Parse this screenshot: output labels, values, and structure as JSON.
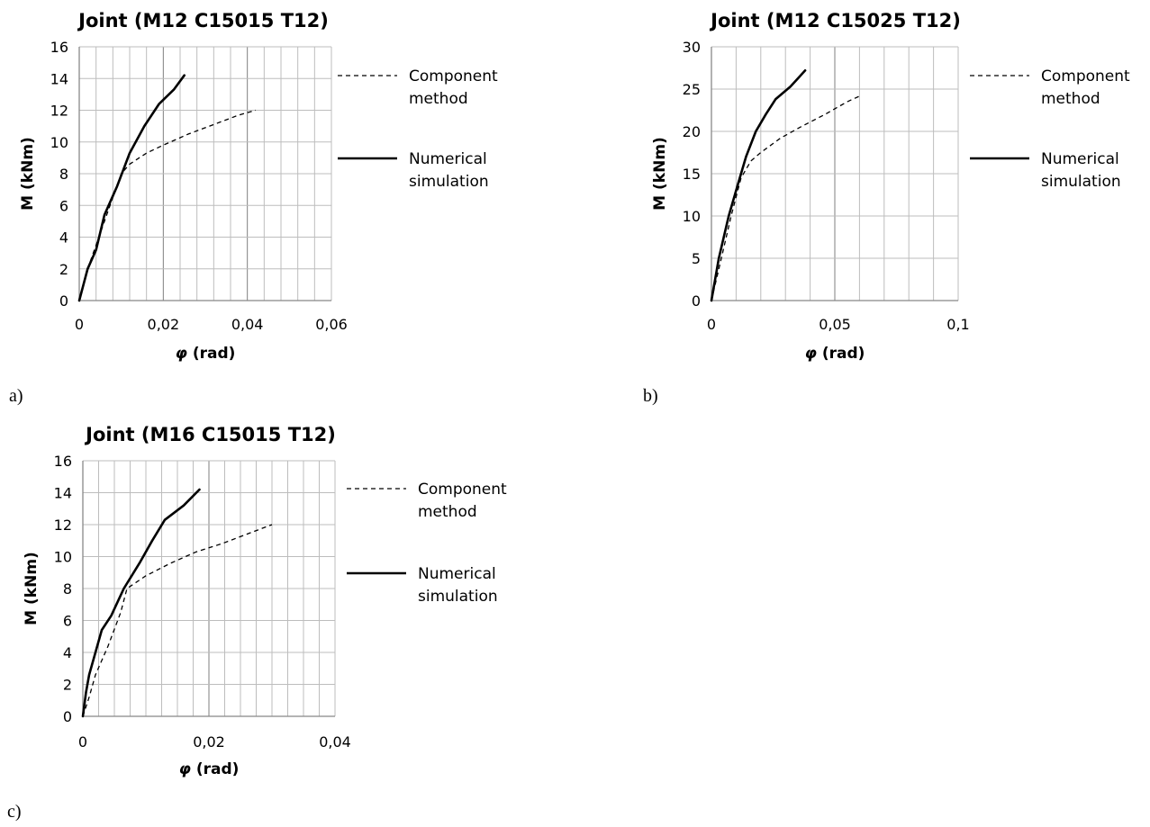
{
  "chart_data": [
    {
      "type": "line",
      "panel_label": "a)",
      "title": "Joint (M12 C15015 T12)",
      "xlabel_symbol": "φ",
      "xlabel_unit": " (rad)",
      "ylabel": "M (kNm)",
      "xlim": [
        0,
        0.06
      ],
      "ylim": [
        0,
        16
      ],
      "xticks": [
        0,
        0.02,
        0.04,
        0.06
      ],
      "xtick_labels": [
        "0",
        "0,02",
        "0,04",
        "0,06"
      ],
      "yticks": [
        0,
        2,
        4,
        6,
        8,
        10,
        12,
        14,
        16
      ],
      "ytick_labels": [
        "0",
        "2",
        "4",
        "6",
        "8",
        "10",
        "12",
        "14",
        "16"
      ],
      "x_minor_step": 0.004,
      "legend_position": "right",
      "series": [
        {
          "name": "Component method",
          "style": "dashed",
          "x": [
            0,
            0.002,
            0.004,
            0.006,
            0.008,
            0.01,
            0.012,
            0.016,
            0.02,
            0.026,
            0.032,
            0.038,
            0.042
          ],
          "y": [
            0,
            2.0,
            3.5,
            5.0,
            6.5,
            8.0,
            8.6,
            9.3,
            9.8,
            10.5,
            11.1,
            11.7,
            12.0
          ]
        },
        {
          "name": "Numerical simulation",
          "style": "solid",
          "x": [
            0,
            0.002,
            0.004,
            0.006,
            0.009,
            0.012,
            0.0155,
            0.019,
            0.0225,
            0.025
          ],
          "y": [
            0,
            2.0,
            3.2,
            5.4,
            7.2,
            9.3,
            11.0,
            12.4,
            13.3,
            14.2
          ]
        }
      ]
    },
    {
      "type": "line",
      "panel_label": "b)",
      "title": "Joint (M12 C15025 T12)",
      "xlabel_symbol": "φ",
      "xlabel_unit": " (rad)",
      "ylabel": "M (kNm)",
      "xlim": [
        0,
        0.1
      ],
      "ylim": [
        0,
        30
      ],
      "xticks": [
        0,
        0.05,
        0.1
      ],
      "xtick_labels": [
        "0",
        "0,05",
        "0,1"
      ],
      "yticks": [
        0,
        5,
        10,
        15,
        20,
        25,
        30
      ],
      "ytick_labels": [
        "0",
        "5",
        "10",
        "15",
        "20",
        "25",
        "30"
      ],
      "x_minor_step": 0.01,
      "legend_position": "right",
      "series": [
        {
          "name": "Component method",
          "style": "dashed",
          "x": [
            0,
            0.004,
            0.008,
            0.012,
            0.016,
            0.02,
            0.028,
            0.036,
            0.046,
            0.055,
            0.061
          ],
          "y": [
            0,
            5.0,
            10.0,
            14.5,
            16.5,
            17.5,
            19.2,
            20.5,
            22.0,
            23.5,
            24.3
          ]
        },
        {
          "name": "Numerical simulation",
          "style": "solid",
          "x": [
            0,
            0.003,
            0.007,
            0.011,
            0.014,
            0.018,
            0.022,
            0.026,
            0.032,
            0.038
          ],
          "y": [
            0,
            5.0,
            10.0,
            14.0,
            17.0,
            20.0,
            22.0,
            23.8,
            25.3,
            27.2
          ]
        }
      ]
    },
    {
      "type": "line",
      "panel_label": "c)",
      "title": "Joint (M16 C15015 T12)",
      "xlabel_symbol": "φ",
      "xlabel_unit": " (rad)",
      "ylabel": "M (kNm)",
      "xlim": [
        0,
        0.04
      ],
      "ylim": [
        0,
        16
      ],
      "xticks": [
        0,
        0.02,
        0.04
      ],
      "xtick_labels": [
        "0",
        "0,02",
        "0,04"
      ],
      "yticks": [
        0,
        2,
        4,
        6,
        8,
        10,
        12,
        14,
        16
      ],
      "ytick_labels": [
        "0",
        "2",
        "4",
        "6",
        "8",
        "10",
        "12",
        "14",
        "16"
      ],
      "x_minor_step": 0.0025,
      "legend_position": "right",
      "series": [
        {
          "name": "Component method",
          "style": "dashed",
          "x": [
            0,
            0.001,
            0.002,
            0.004,
            0.006,
            0.007,
            0.01,
            0.014,
            0.018,
            0.022,
            0.026,
            0.03
          ],
          "y": [
            0,
            1.2,
            2.6,
            4.4,
            6.5,
            8.0,
            8.8,
            9.6,
            10.3,
            10.8,
            11.4,
            12.0
          ]
        },
        {
          "name": "Numerical simulation",
          "style": "solid",
          "x": [
            0,
            0.0005,
            0.001,
            0.002,
            0.003,
            0.0045,
            0.0065,
            0.009,
            0.011,
            0.013,
            0.016,
            0.0185
          ],
          "y": [
            0,
            1.5,
            2.6,
            4.0,
            5.4,
            6.3,
            8.0,
            9.6,
            11.0,
            12.3,
            13.2,
            14.2
          ]
        }
      ]
    }
  ]
}
